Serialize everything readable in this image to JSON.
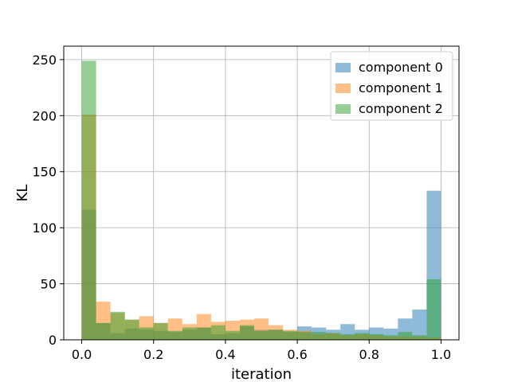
{
  "chart_data": {
    "type": "bar",
    "histogram": true,
    "xlabel": "iteration",
    "ylabel": "KL",
    "xlim": [
      -0.05,
      1.05
    ],
    "ylim": [
      0,
      262
    ],
    "xticks": [
      0.0,
      0.2,
      0.4,
      0.6,
      0.8,
      1.0
    ],
    "xtick_labels": [
      "0.0",
      "0.2",
      "0.4",
      "0.6",
      "0.8",
      "1.0"
    ],
    "yticks": [
      0,
      50,
      100,
      150,
      200,
      250
    ],
    "ytick_labels": [
      "0",
      "50",
      "100",
      "150",
      "200",
      "250"
    ],
    "grid": true,
    "legend_position": "upper-right",
    "bin_edges": [
      0.0,
      0.04,
      0.08,
      0.12,
      0.16,
      0.2,
      0.24,
      0.28,
      0.32,
      0.36,
      0.4,
      0.44,
      0.48,
      0.52,
      0.56,
      0.6,
      0.64,
      0.68,
      0.72,
      0.76,
      0.8,
      0.84,
      0.88,
      0.92,
      0.96,
      1.0
    ],
    "series": [
      {
        "name": "component 0",
        "color": "#1f77b4",
        "values": [
          116,
          15,
          6,
          10,
          9,
          8,
          7,
          9,
          11,
          5,
          6,
          12,
          9,
          9,
          7,
          12,
          11,
          9,
          14,
          9,
          11,
          10,
          19,
          27,
          133
        ]
      },
      {
        "name": "component 1",
        "color": "#ff7f0e",
        "values": [
          201,
          34,
          24,
          18,
          21,
          15,
          19,
          14,
          23,
          16,
          17,
          18,
          19,
          13,
          9,
          8,
          5,
          6,
          4,
          5,
          4,
          3,
          3,
          3,
          2
        ]
      },
      {
        "name": "component 2",
        "color": "#2ca02c",
        "values": [
          249,
          15,
          25,
          18,
          11,
          15,
          8,
          11,
          11,
          13,
          8,
          13,
          8,
          9,
          8,
          7,
          7,
          6,
          5,
          6,
          5,
          4,
          7,
          4,
          54
        ]
      }
    ]
  }
}
